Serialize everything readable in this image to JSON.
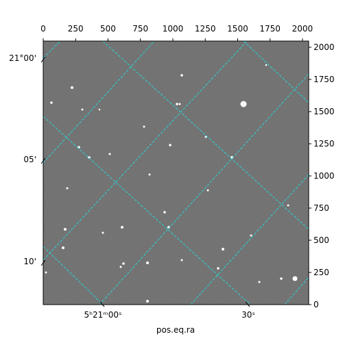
{
  "chart_data": {
    "type": "image",
    "xlim": [
      0,
      2048
    ],
    "ylim": [
      0,
      2048
    ],
    "xticks": [
      0,
      250,
      500,
      750,
      1000,
      1250,
      1500,
      1750,
      2000
    ],
    "yticks": [
      0,
      250,
      500,
      750,
      1000,
      1250,
      1500,
      1750,
      2000
    ],
    "dec_labels": [
      "21°00'",
      "05'",
      "10'"
    ],
    "ra_labels": [
      "5ʰ21ᵐ00ˢ",
      "30ˢ"
    ],
    "xlabel": "pos.eq.ra",
    "grid": true
  }
}
